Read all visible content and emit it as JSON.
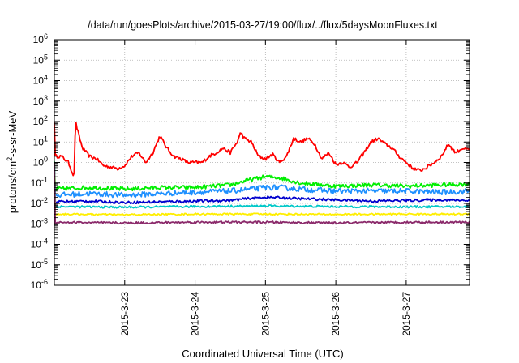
{
  "chart_data": {
    "type": "line",
    "title": "/data/run/goesPlots/archive/2015-03-27/19:00/flux/../flux/5daysMoonFluxes.txt",
    "xlabel": "Coordinated Universal Time (UTC)",
    "ylabel_parts": {
      "pre": "protons/cm",
      "sup": "2",
      "post": "-s-sr-MeV"
    },
    "yscale": "log",
    "ylim_exp": [
      -6,
      6
    ],
    "y_tick_exponents": [
      -6,
      -5,
      -4,
      -3,
      -2,
      -1,
      0,
      1,
      2,
      3,
      4,
      5,
      6
    ],
    "y_tick_base": "10",
    "xlim": [
      0,
      5.9
    ],
    "x_ticks": [
      {
        "x": 1,
        "label": "2015-3-23"
      },
      {
        "x": 2,
        "label": "2015-3-24"
      },
      {
        "x": 3,
        "label": "2015-3-25"
      },
      {
        "x": 4,
        "label": "2015-3-26"
      },
      {
        "x": 5,
        "label": "2015-3-27"
      }
    ],
    "grid": true,
    "series": [
      {
        "color": "#ff0000",
        "noise": 0.08,
        "x": [
          0.0,
          0.1,
          0.2,
          0.28,
          0.3,
          0.35,
          0.4,
          0.5,
          0.6,
          0.7,
          0.8,
          0.9,
          1.0,
          1.1,
          1.2,
          1.3,
          1.4,
          1.5,
          1.6,
          1.7,
          1.8,
          1.9,
          2.0,
          2.1,
          2.2,
          2.3,
          2.4,
          2.5,
          2.6,
          2.65,
          2.7,
          2.8,
          2.9,
          3.0,
          3.1,
          3.2,
          3.3,
          3.4,
          3.5,
          3.6,
          3.7,
          3.8,
          3.9,
          4.0,
          4.1,
          4.2,
          4.3,
          4.4,
          4.5,
          4.6,
          4.7,
          4.8,
          4.9,
          5.0,
          5.1,
          5.2,
          5.3,
          5.4,
          5.5,
          5.6,
          5.7,
          5.8,
          5.9
        ],
        "y": [
          2.0,
          2.0,
          1.0,
          0.2,
          100,
          20,
          5.0,
          2.0,
          1.5,
          0.7,
          0.6,
          0.5,
          0.7,
          2.0,
          3.0,
          1.0,
          3.0,
          20,
          5.0,
          2.0,
          1.5,
          1.0,
          1.0,
          1.0,
          2.0,
          3.0,
          5.0,
          3.0,
          10,
          30,
          15,
          10,
          2.0,
          1.5,
          2.5,
          1.0,
          2.0,
          15,
          10,
          15,
          8.0,
          1.5,
          3.0,
          0.8,
          1.0,
          0.6,
          1.0,
          3.0,
          10,
          15,
          8.0,
          5.0,
          2.0,
          1.0,
          0.5,
          0.4,
          0.6,
          1.0,
          2.0,
          8.0,
          3.0,
          5.0,
          4.0
        ]
      },
      {
        "color": "#00ee00",
        "noise": 0.1,
        "x": [
          0.0,
          0.5,
          1.0,
          1.5,
          2.0,
          2.5,
          2.8,
          3.0,
          3.2,
          3.5,
          4.0,
          4.5,
          5.0,
          5.5,
          5.9
        ],
        "y": [
          0.05,
          0.06,
          0.05,
          0.06,
          0.06,
          0.08,
          0.15,
          0.2,
          0.18,
          0.1,
          0.07,
          0.08,
          0.07,
          0.08,
          0.09
        ]
      },
      {
        "color": "#1e90ff",
        "noise": 0.13,
        "x": [
          0.0,
          0.5,
          1.0,
          1.5,
          2.0,
          2.5,
          2.8,
          3.0,
          3.2,
          3.5,
          4.0,
          4.5,
          5.0,
          5.5,
          5.9
        ],
        "y": [
          0.025,
          0.03,
          0.025,
          0.03,
          0.035,
          0.04,
          0.05,
          0.06,
          0.06,
          0.05,
          0.04,
          0.04,
          0.04,
          0.035,
          0.04
        ]
      },
      {
        "color": "#0000cd",
        "noise": 0.06,
        "x": [
          0.0,
          0.5,
          1.0,
          1.5,
          2.0,
          2.5,
          2.8,
          3.0,
          3.2,
          3.5,
          4.0,
          4.5,
          5.0,
          5.5,
          5.9
        ],
        "y": [
          0.012,
          0.013,
          0.011,
          0.012,
          0.013,
          0.014,
          0.018,
          0.02,
          0.019,
          0.017,
          0.015,
          0.013,
          0.014,
          0.015,
          0.014
        ]
      },
      {
        "color": "#00c8c8",
        "noise": 0.05,
        "x": [
          0.0,
          1.0,
          2.0,
          3.0,
          4.0,
          5.0,
          5.9
        ],
        "y": [
          0.007,
          0.0065,
          0.007,
          0.0075,
          0.007,
          0.0068,
          0.007
        ]
      },
      {
        "color": "#ffee00",
        "noise": 0.04,
        "x": [
          0.0,
          1.0,
          2.0,
          3.0,
          4.0,
          5.0,
          5.9
        ],
        "y": [
          0.003,
          0.0028,
          0.003,
          0.003,
          0.0029,
          0.003,
          0.003
        ]
      },
      {
        "color": "#8b2a6b",
        "noise": 0.05,
        "x": [
          0.0,
          1.0,
          2.0,
          3.0,
          4.0,
          5.0,
          5.9
        ],
        "y": [
          0.0012,
          0.0011,
          0.0012,
          0.0012,
          0.0011,
          0.0012,
          0.0012
        ]
      }
    ]
  }
}
